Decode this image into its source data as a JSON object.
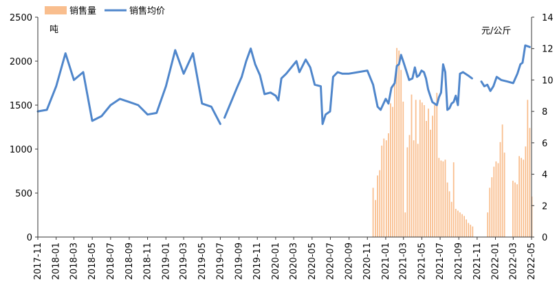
{
  "chart_data": {
    "type": "bar+line",
    "legend_position": "top-left",
    "grid": false,
    "left_axis": {
      "unit": "吨",
      "range": [
        0,
        2500
      ],
      "ticks": [
        0,
        500,
        1000,
        1500,
        2000,
        2500
      ]
    },
    "right_axis": {
      "unit": "元/公斤",
      "range": [
        0,
        14
      ],
      "ticks": [
        0,
        2,
        4,
        6,
        8,
        10,
        12,
        14
      ]
    },
    "x_axis": {
      "range": [
        "2017-11",
        "2022-05"
      ],
      "ticks": [
        "2017-11",
        "2018-01",
        "2018-03",
        "2018-05",
        "2018-07",
        "2018-09",
        "2018-11",
        "2019-01",
        "2019-03",
        "2019-05",
        "2019-07",
        "2019-09",
        "2019-11",
        "2020-01",
        "2020-03",
        "2020-05",
        "2020-07",
        "2020-09",
        "2020-11",
        "2021-01",
        "2021-03",
        "2021-05",
        "2021-07",
        "2021-09",
        "2021-11",
        "2022-01",
        "2022-03",
        "2022-05"
      ]
    },
    "series": [
      {
        "name": "销售量",
        "type": "bar",
        "axis": "left",
        "color": "#F9BE8E",
        "points": [
          [
            "2020-11-20",
            560
          ],
          [
            "2020-11-28",
            420
          ],
          [
            "2020-12-05",
            700
          ],
          [
            "2020-12-12",
            760
          ],
          [
            "2020-12-19",
            1040
          ],
          [
            "2020-12-26",
            1120
          ],
          [
            "2021-01-03",
            1100
          ],
          [
            "2021-01-10",
            1180
          ],
          [
            "2021-01-17",
            1520
          ],
          [
            "2021-01-24",
            1480
          ],
          [
            "2021-01-31",
            1740
          ],
          [
            "2021-02-07",
            2150
          ],
          [
            "2021-02-14",
            2120
          ],
          [
            "2021-02-21",
            1900
          ],
          [
            "2021-02-28",
            1540
          ],
          [
            "2021-03-07",
            280
          ],
          [
            "2021-03-14",
            1020
          ],
          [
            "2021-03-21",
            1160
          ],
          [
            "2021-03-28",
            1620
          ],
          [
            "2021-04-04",
            1100
          ],
          [
            "2021-04-11",
            1560
          ],
          [
            "2021-04-18",
            1060
          ],
          [
            "2021-04-25",
            1560
          ],
          [
            "2021-05-02",
            1530
          ],
          [
            "2021-05-09",
            1500
          ],
          [
            "2021-05-16",
            1320
          ],
          [
            "2021-05-23",
            1460
          ],
          [
            "2021-05-30",
            1220
          ],
          [
            "2021-06-06",
            1380
          ],
          [
            "2021-06-13",
            1500
          ],
          [
            "2021-06-20",
            1640
          ],
          [
            "2021-06-27",
            900
          ],
          [
            "2021-07-04",
            870
          ],
          [
            "2021-07-11",
            860
          ],
          [
            "2021-07-18",
            880
          ],
          [
            "2021-07-25",
            620
          ],
          [
            "2021-08-01",
            520
          ],
          [
            "2021-08-08",
            400
          ],
          [
            "2021-08-15",
            850
          ],
          [
            "2021-08-22",
            320
          ],
          [
            "2021-08-29",
            300
          ],
          [
            "2021-09-05",
            280
          ],
          [
            "2021-09-12",
            260
          ],
          [
            "2021-09-19",
            240
          ],
          [
            "2021-09-26",
            200
          ],
          [
            "2021-10-03",
            160
          ],
          [
            "2021-10-10",
            140
          ],
          [
            "2021-10-17",
            120
          ],
          [
            "2021-12-06",
            280
          ],
          [
            "2021-12-13",
            560
          ],
          [
            "2021-12-20",
            680
          ],
          [
            "2021-12-27",
            800
          ],
          [
            "2022-01-03",
            860
          ],
          [
            "2022-01-10",
            840
          ],
          [
            "2022-01-17",
            1080
          ],
          [
            "2022-01-24",
            1280
          ],
          [
            "2022-01-31",
            960
          ],
          [
            "2022-02-28",
            640
          ],
          [
            "2022-03-07",
            620
          ],
          [
            "2022-03-14",
            600
          ],
          [
            "2022-03-21",
            920
          ],
          [
            "2022-03-28",
            900
          ],
          [
            "2022-04-04",
            880
          ],
          [
            "2022-04-11",
            1030
          ],
          [
            "2022-04-18",
            1560
          ],
          [
            "2022-04-25",
            1240
          ],
          [
            "2022-05-02",
            460
          ]
        ]
      },
      {
        "name": "销售均价",
        "type": "line",
        "axis": "right",
        "color": "#4F86CB",
        "segments": [
          [
            [
              "2017-11-01",
              8.0
            ],
            [
              "2017-12-01",
              8.1
            ],
            [
              "2018-01-01",
              9.6
            ],
            [
              "2018-02-01",
              11.7
            ],
            [
              "2018-03-01",
              10.0
            ],
            [
              "2018-04-01",
              10.5
            ],
            [
              "2018-05-01",
              7.4
            ],
            [
              "2018-06-01",
              7.7
            ],
            [
              "2018-07-01",
              8.4
            ],
            [
              "2018-08-01",
              8.8
            ],
            [
              "2018-09-01",
              8.6
            ],
            [
              "2018-10-01",
              8.4
            ],
            [
              "2018-11-01",
              7.8
            ],
            [
              "2018-12-01",
              7.9
            ],
            [
              "2019-01-01",
              9.6
            ],
            [
              "2019-02-01",
              11.9
            ],
            [
              "2019-03-01",
              10.4
            ],
            [
              "2019-04-01",
              11.7
            ],
            [
              "2019-05-01",
              8.5
            ],
            [
              "2019-06-01",
              8.3
            ],
            [
              "2019-07-01",
              7.2
            ]
          ],
          [
            [
              "2019-07-15",
              7.6
            ],
            [
              "2019-08-10",
              8.8
            ],
            [
              "2019-08-25",
              9.5
            ],
            [
              "2019-09-10",
              10.2
            ],
            [
              "2019-09-25",
              11.2
            ],
            [
              "2019-10-10",
              12.0
            ],
            [
              "2019-10-25",
              11.0
            ],
            [
              "2019-11-10",
              10.3
            ],
            [
              "2019-11-25",
              9.1
            ],
            [
              "2019-12-15",
              9.2
            ],
            [
              "2020-01-01",
              9.0
            ],
            [
              "2020-01-10",
              8.7
            ],
            [
              "2020-01-20",
              10.1
            ],
            [
              "2020-02-05",
              10.4
            ],
            [
              "2020-03-10",
              11.2
            ],
            [
              "2020-03-20",
              10.5
            ],
            [
              "2020-04-10",
              11.3
            ],
            [
              "2020-04-25",
              10.8
            ],
            [
              "2020-05-10",
              9.7
            ],
            [
              "2020-05-30",
              9.6
            ],
            [
              "2020-06-05",
              7.2
            ],
            [
              "2020-06-15",
              7.8
            ],
            [
              "2020-06-30",
              8.0
            ],
            [
              "2020-07-10",
              10.2
            ],
            [
              "2020-07-25",
              10.5
            ],
            [
              "2020-08-10",
              10.4
            ],
            [
              "2020-08-30",
              10.4
            ],
            [
              "2020-10-01",
              10.5
            ],
            [
              "2020-11-01",
              10.6
            ],
            [
              "2020-11-20",
              9.7
            ],
            [
              "2020-12-05",
              8.3
            ],
            [
              "2020-12-15",
              8.1
            ],
            [
              "2021-01-01",
              8.8
            ],
            [
              "2021-01-10",
              8.5
            ],
            [
              "2021-01-20",
              9.5
            ],
            [
              "2021-01-31",
              9.8
            ],
            [
              "2021-02-07",
              10.9
            ],
            [
              "2021-02-14",
              11.0
            ],
            [
              "2021-02-21",
              11.6
            ],
            [
              "2021-02-28",
              11.2
            ],
            [
              "2021-03-10",
              10.6
            ],
            [
              "2021-03-20",
              10.0
            ],
            [
              "2021-03-31",
              10.1
            ],
            [
              "2021-04-08",
              10.8
            ],
            [
              "2021-04-15",
              10.2
            ],
            [
              "2021-04-22",
              10.3
            ],
            [
              "2021-04-30",
              10.6
            ],
            [
              "2021-05-08",
              10.5
            ],
            [
              "2021-05-15",
              10.1
            ],
            [
              "2021-05-22",
              9.4
            ],
            [
              "2021-05-29",
              9.0
            ],
            [
              "2021-06-05",
              8.6
            ],
            [
              "2021-06-12",
              8.5
            ],
            [
              "2021-06-20",
              8.4
            ],
            [
              "2021-06-27",
              8.9
            ],
            [
              "2021-07-04",
              9.2
            ],
            [
              "2021-07-11",
              11.0
            ],
            [
              "2021-07-18",
              10.5
            ],
            [
              "2021-07-25",
              8.1
            ],
            [
              "2021-08-01",
              8.2
            ],
            [
              "2021-08-08",
              8.5
            ],
            [
              "2021-08-15",
              8.6
            ],
            [
              "2021-08-22",
              9.0
            ],
            [
              "2021-08-29",
              8.4
            ],
            [
              "2021-09-05",
              10.4
            ],
            [
              "2021-09-15",
              10.5
            ],
            [
              "2021-10-01",
              10.3
            ],
            [
              "2021-10-15",
              10.1
            ]
          ],
          [
            [
              "2021-11-15",
              9.9
            ],
            [
              "2021-11-25",
              9.6
            ],
            [
              "2021-12-05",
              9.7
            ],
            [
              "2021-12-15",
              9.3
            ],
            [
              "2021-12-25",
              9.6
            ],
            [
              "2022-01-05",
              10.2
            ],
            [
              "2022-01-20",
              10.0
            ],
            [
              "2022-02-10",
              9.9
            ],
            [
              "2022-03-01",
              9.8
            ],
            [
              "2022-03-15",
              10.4
            ],
            [
              "2022-03-25",
              11.0
            ],
            [
              "2022-04-01",
              11.1
            ],
            [
              "2022-04-10",
              12.2
            ],
            [
              "2022-04-25",
              12.1
            ]
          ]
        ]
      }
    ]
  }
}
